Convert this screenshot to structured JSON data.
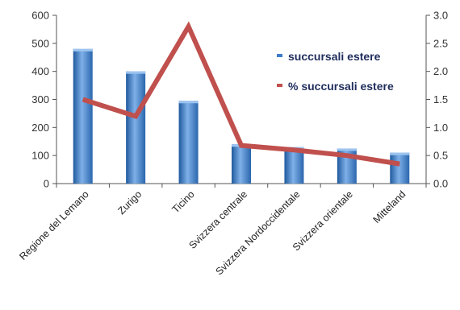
{
  "chart_data": {
    "type": "bar",
    "categories": [
      "Regione del Lemano",
      "Zurigo",
      "Ticino",
      "Svizzera centrale",
      "Svizzera Nordoccidentale",
      "Svizzera orientale",
      "Mitteland"
    ],
    "series": [
      {
        "name": "succursali estere",
        "type": "bar",
        "axis": "left",
        "values": [
          480,
          400,
          295,
          140,
          130,
          125,
          110
        ]
      },
      {
        "name": "% succursali estere",
        "type": "line",
        "axis": "right",
        "values": [
          1.5,
          1.2,
          2.8,
          0.68,
          0.6,
          0.5,
          0.35
        ]
      }
    ],
    "ylim": [
      0,
      600
    ],
    "y_ticks": [
      0,
      100,
      200,
      300,
      400,
      500,
      600
    ],
    "y2lim": [
      0,
      3.0
    ],
    "y2_ticks": [
      "0.0",
      "0.5",
      "1.0",
      "1.5",
      "2.0",
      "2.5",
      "3.0"
    ],
    "grid": false,
    "legend_position": "top-right",
    "colors": {
      "bar": "#3d7cc9",
      "bar_light": "#7fb0e8",
      "bar_dark": "#1f5a9e",
      "line": "#c0504d",
      "axis": "#555555"
    }
  }
}
